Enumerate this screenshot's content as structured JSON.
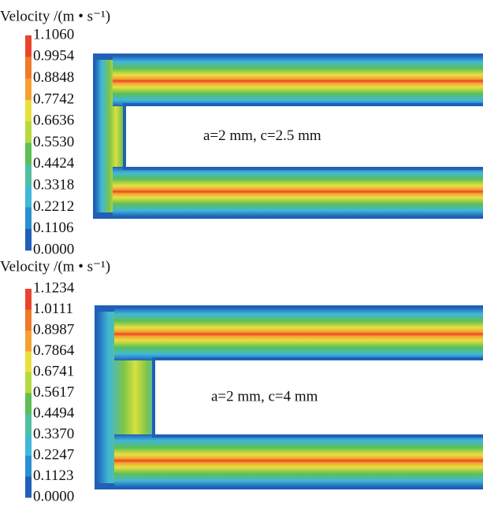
{
  "panels": [
    {
      "title": "Velocity /(m • s⁻¹)",
      "colorbar": [
        "1.1060",
        "0.9954",
        "0.8848",
        "0.7742",
        "0.6636",
        "0.5530",
        "0.4424",
        "0.3318",
        "0.2212",
        "0.1106",
        "0.0000"
      ],
      "annotation": "a=2 mm, c=2.5 mm"
    },
    {
      "title": "Velocity /(m • s⁻¹)",
      "colorbar": [
        "1.1234",
        "1.0111",
        "0.8987",
        "0.7864",
        "0.6741",
        "0.5617",
        "0.4494",
        "0.3370",
        "0.2247",
        "0.1123",
        "0.0000"
      ],
      "annotation": "a=2 mm, c=4 mm"
    }
  ]
}
